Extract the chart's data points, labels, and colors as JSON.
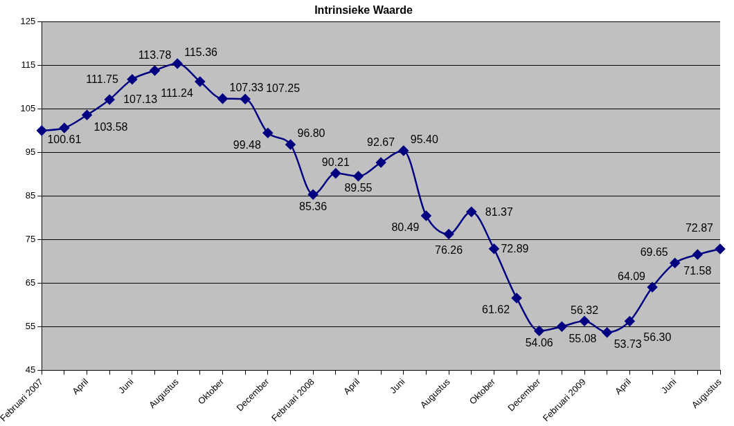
{
  "chart_data": {
    "type": "line",
    "title": "Intrinsieke Waarde",
    "categories": [
      "Februari 2007",
      null,
      "April",
      null,
      "Juni",
      null,
      "Augustus",
      null,
      "Oktober",
      null,
      "December",
      null,
      "Februari 2008",
      null,
      "April",
      null,
      "Juni",
      null,
      "Augustus",
      null,
      "Oktober",
      null,
      "December",
      null,
      "Februari 2009",
      null,
      "April",
      null,
      "Juni",
      null,
      "Augustus"
    ],
    "series": [
      {
        "color": "#000080",
        "values": [
          100,
          100.61,
          103.58,
          107.13,
          111.75,
          113.78,
          115.36,
          111.24,
          107.33,
          107.25,
          99.48,
          96.8,
          85.36,
          90.21,
          89.55,
          92.67,
          95.4,
          80.49,
          76.26,
          81.37,
          72.89,
          61.62,
          54.06,
          55.08,
          56.32,
          53.73,
          56.3,
          64.09,
          69.65,
          71.58,
          72.87
        ],
        "value_labels": [
          null,
          "100.61",
          "103.58",
          "107.13",
          "111.75",
          "113.78",
          "115.36",
          "111.24",
          "107.33",
          "107.25",
          "99.48",
          "96.80",
          "85.36",
          "90.21",
          "89.55",
          "92.67",
          "95.40",
          "80.49",
          "76.26",
          "81.37",
          "72.89",
          "61.62",
          "54.06",
          "55.08",
          "56.32",
          "53.73",
          "56.30",
          "64.09",
          "69.65",
          "71.58",
          "72.87"
        ]
      }
    ],
    "ylim": [
      45,
      125
    ],
    "yticks": [
      45,
      55,
      65,
      75,
      85,
      95,
      105,
      115,
      125
    ],
    "grid": "y",
    "legend": false,
    "marker": "diamond",
    "line_style": "solid"
  }
}
